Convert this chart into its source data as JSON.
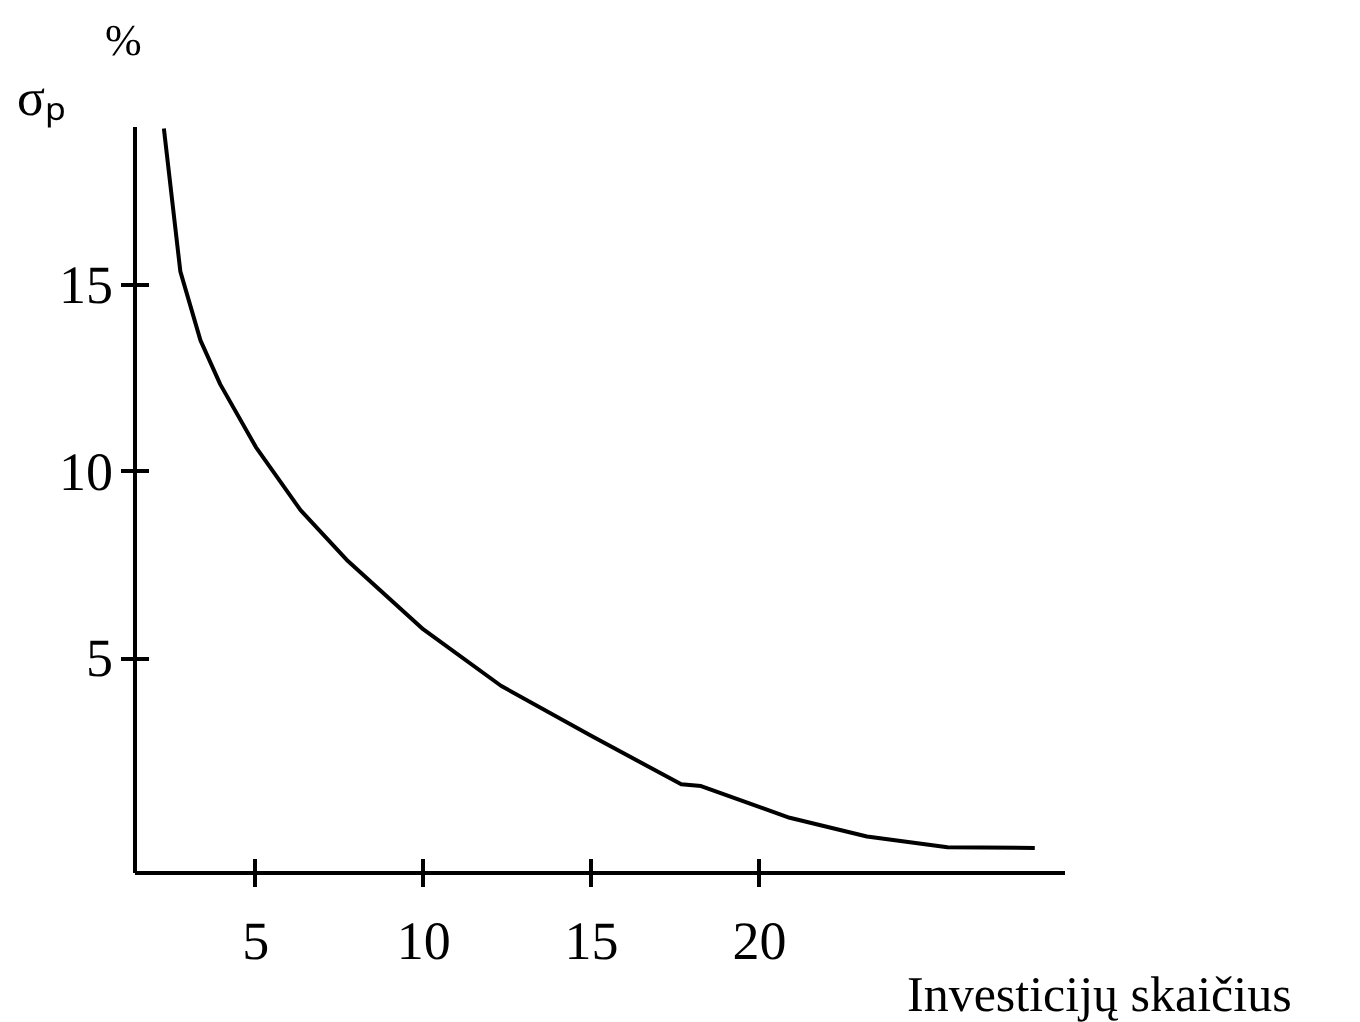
{
  "chart_data": {
    "type": "line",
    "xlabel": "Investicijų skaičius",
    "ylabel": "σₚ %",
    "color": "#000000",
    "x": [
      2.26,
      2.75,
      3.35,
      3.94,
      5.0,
      6.33,
      7.7,
      9.99,
      12.3,
      15.0,
      17.67,
      18.26,
      20.9,
      23.2,
      25.6,
      28.2
    ],
    "values": [
      19.2,
      15.37,
      13.52,
      12.34,
      10.66,
      8.97,
      7.64,
      5.77,
      4.26,
      2.91,
      1.62,
      1.57,
      0.72,
      0.22,
      -0.07,
      -0.09
    ],
    "xlim": [
      1.4,
      29.1
    ],
    "ylim": [
      -0.76,
      19.24
    ],
    "xticks": [
      5,
      10,
      15,
      20
    ],
    "yticks": [
      5,
      10,
      15
    ],
    "grid": false,
    "marker": "none",
    "line_style": "solid"
  }
}
